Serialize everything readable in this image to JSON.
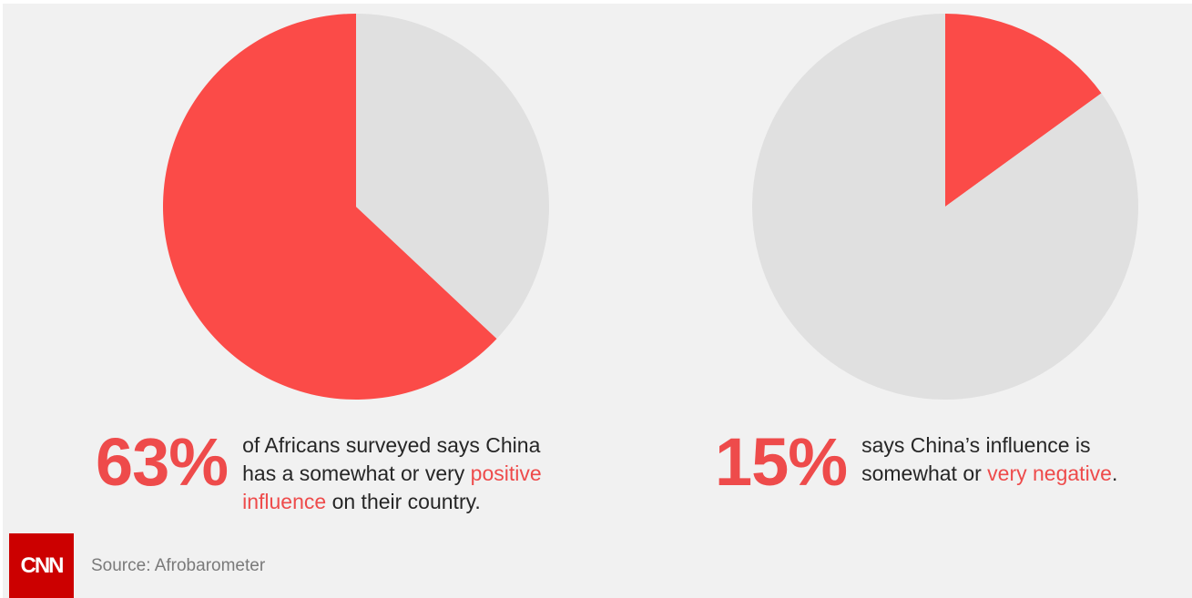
{
  "chart_data": [
    {
      "type": "pie",
      "slices": [
        {
          "label": "positive influence",
          "value": 63,
          "color": "#fb4b48"
        },
        {
          "label": "other",
          "value": 37,
          "color": "#e0e0e0"
        }
      ]
    },
    {
      "type": "pie",
      "slices": [
        {
          "label": "negative influence",
          "value": 15,
          "color": "#fb4b48"
        },
        {
          "label": "other",
          "value": 85,
          "color": "#e0e0e0"
        }
      ]
    }
  ],
  "stats": {
    "left": {
      "percent": "63%",
      "line1": "of Africans surveyed says China",
      "line2_pre": "has a somewhat or very ",
      "line2_hl": "positive",
      "line3_hl": "influence",
      "line3_post": " on their country."
    },
    "right": {
      "percent": "15%",
      "line1": "says China’s influence is",
      "line2_pre": "somewhat or ",
      "line2_hl": "very negative",
      "line2_post": "."
    }
  },
  "footer": {
    "logo_text": "CNN",
    "source": "Source: Afrobarometer"
  }
}
